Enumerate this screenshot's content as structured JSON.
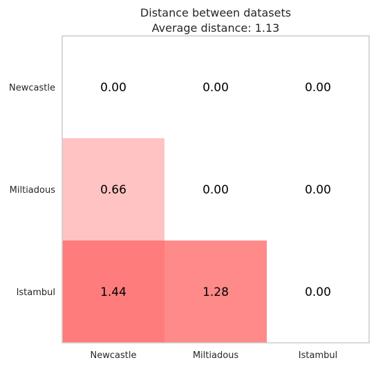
{
  "chart_data": {
    "type": "heatmap",
    "title": "Distance between datasets",
    "subtitle": "Average distance: 1.13",
    "rows": [
      "Newcastle",
      "Miltiadous",
      "Istambul"
    ],
    "columns": [
      "Newcastle",
      "Miltiadous",
      "Istambul"
    ],
    "values": [
      [
        0.0,
        0.0,
        0.0
      ],
      [
        0.66,
        0.0,
        0.0
      ],
      [
        1.44,
        1.28,
        0.0
      ]
    ],
    "value_labels": [
      [
        "0.00",
        "0.00",
        "0.00"
      ],
      [
        "0.66",
        "0.00",
        "0.00"
      ],
      [
        "1.44",
        "1.28",
        "0.00"
      ]
    ],
    "color_min": "#ffffff",
    "color_max": "#ff0000",
    "value_max": 2.8,
    "grid": false,
    "legend": "none"
  }
}
